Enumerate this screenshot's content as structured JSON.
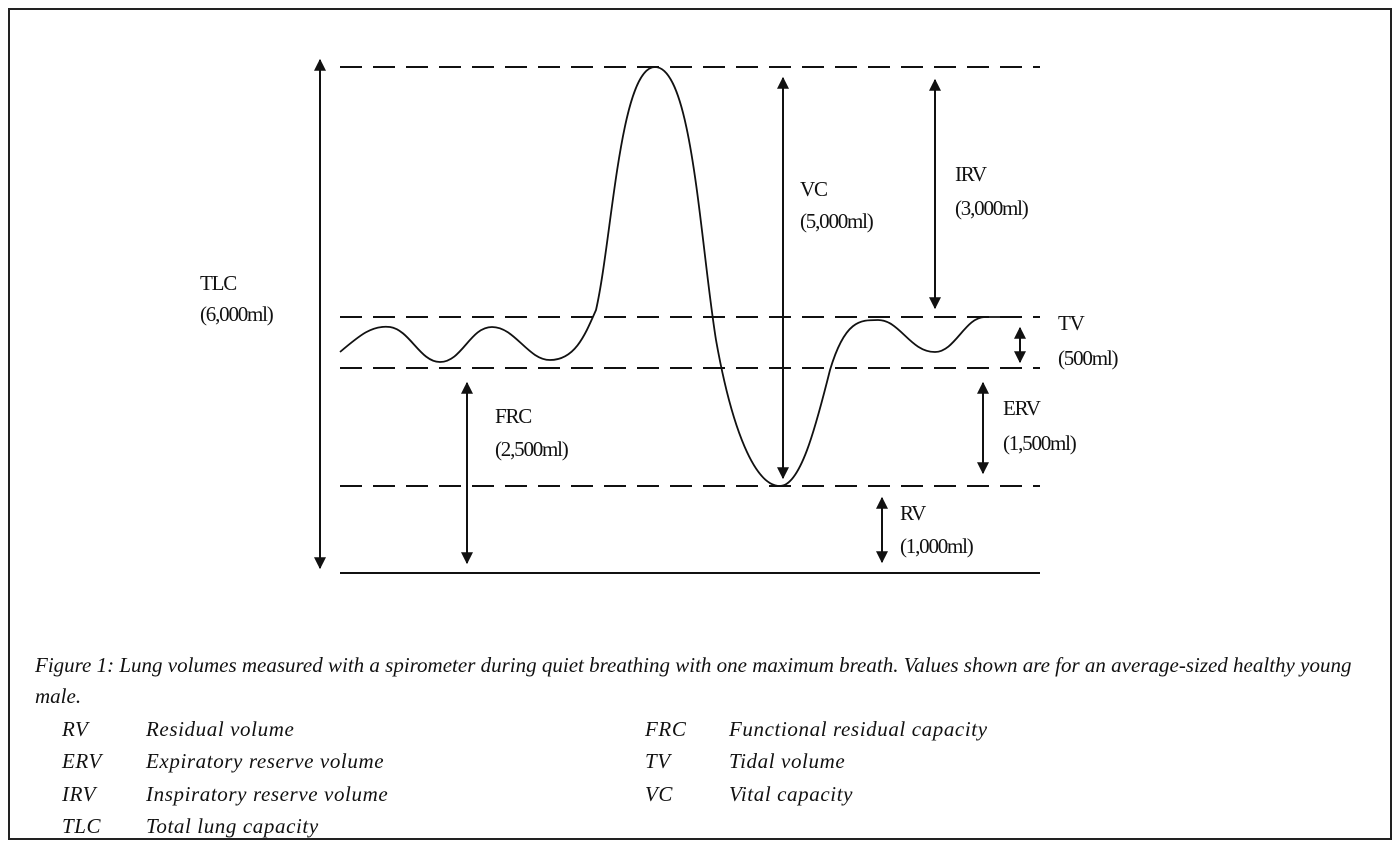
{
  "labels": [
    {
      "abbr": "TLC",
      "value": "(6,000ml)"
    },
    {
      "abbr": "VC",
      "value": "(5,000ml)"
    },
    {
      "abbr": "IRV",
      "value": "(3,000ml)"
    },
    {
      "abbr": "TV",
      "value": "(500ml)"
    },
    {
      "abbr": "ERV",
      "value": "(1,500ml)"
    },
    {
      "abbr": "FRC",
      "value": "(2,500ml)"
    },
    {
      "abbr": "RV",
      "value": "(1,000ml)"
    }
  ],
  "caption": "Figure 1: Lung volumes measured with a spirometer during quiet breathing with one maximum breath. Values shown are for an average-sized healthy young male.",
  "legend": [
    {
      "abbr": "RV",
      "name": "Residual volume"
    },
    {
      "abbr": "ERV",
      "name": "Expiratory reserve volume"
    },
    {
      "abbr": "IRV",
      "name": "Inspiratory reserve volume"
    },
    {
      "abbr": "TLC",
      "name": "Total lung capacity"
    },
    {
      "abbr": "FRC",
      "name": "Functional residual capacity"
    },
    {
      "abbr": "TV",
      "name": "Tidal volume"
    },
    {
      "abbr": "VC",
      "name": "Vital capacity"
    }
  ]
}
